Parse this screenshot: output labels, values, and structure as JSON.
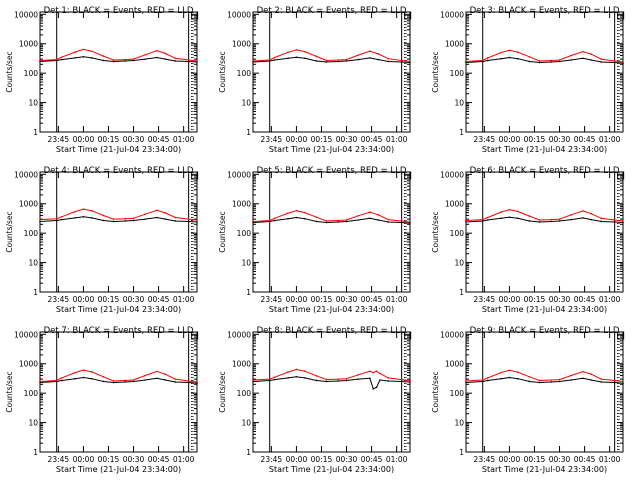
{
  "page": {
    "colors": {
      "background": "#ffffff",
      "axes": "#000000",
      "events": "#000000",
      "lld": "#ff0000"
    }
  },
  "chart_data": [
    {
      "type": "line",
      "title": "Det 1: BLACK = Events, RED = LLD",
      "xlabel": "Start Time (21-Jul-04 23:34:00)",
      "ylabel": "Counts/sec",
      "yscale": "log",
      "ylim": [
        1,
        12000
      ],
      "xlim": [
        "23:34",
        "01:08"
      ],
      "x_ticks": [
        "23:45",
        "00:00",
        "00:15",
        "00:30",
        "00:45",
        "01:00"
      ],
      "y_ticks": [
        "1",
        "10",
        "100",
        "1000",
        "10000"
      ],
      "vlines": [
        "23:44",
        "01:03"
      ],
      "series": [
        {
          "name": "Events",
          "color": "#000000",
          "x": [
            "23:34",
            "23:44",
            "23:47",
            "23:55",
            "00:00",
            "00:05",
            "00:12",
            "00:18",
            "00:25",
            "00:30",
            "00:37",
            "00:44",
            "00:49",
            "00:55",
            "01:03",
            "01:08"
          ],
          "y": [
            250,
            270,
            290,
            330,
            360,
            330,
            270,
            250,
            260,
            270,
            300,
            340,
            300,
            260,
            250,
            240
          ]
        },
        {
          "name": "LLD",
          "color": "#ff0000",
          "x": [
            "23:34",
            "23:44",
            "23:47",
            "23:55",
            "00:00",
            "00:05",
            "00:12",
            "00:18",
            "00:25",
            "00:30",
            "00:37",
            "00:44",
            "00:49",
            "00:55",
            "01:03",
            "01:08"
          ],
          "y": [
            270,
            290,
            350,
            520,
            640,
            560,
            380,
            280,
            290,
            300,
            420,
            580,
            470,
            320,
            280,
            260
          ]
        }
      ]
    },
    {
      "type": "line",
      "title": "Det 2: BLACK = Events, RED = LLD",
      "xlabel": "Start Time (21-Jul-04 23:34:00)",
      "ylabel": "Counts/sec",
      "yscale": "log",
      "ylim": [
        1,
        12000
      ],
      "xlim": [
        "23:34",
        "01:08"
      ],
      "x_ticks": [
        "23:45",
        "00:00",
        "00:15",
        "00:30",
        "00:45",
        "01:00"
      ],
      "y_ticks": [
        "1",
        "10",
        "100",
        "1000",
        "10000"
      ],
      "vlines": [
        "23:44",
        "01:03"
      ],
      "series": [
        {
          "name": "Events",
          "color": "#000000",
          "x": [
            "23:34",
            "23:44",
            "23:47",
            "23:55",
            "00:00",
            "00:05",
            "00:12",
            "00:18",
            "00:25",
            "00:30",
            "00:37",
            "00:44",
            "00:49",
            "00:55",
            "01:03",
            "01:08"
          ],
          "y": [
            240,
            260,
            280,
            320,
            350,
            320,
            260,
            240,
            250,
            260,
            290,
            330,
            290,
            250,
            240,
            230
          ]
        },
        {
          "name": "LLD",
          "color": "#ff0000",
          "x": [
            "23:34",
            "23:44",
            "23:47",
            "23:55",
            "00:00",
            "00:05",
            "00:12",
            "00:18",
            "00:25",
            "00:30",
            "00:37",
            "00:44",
            "00:49",
            "00:55",
            "01:03",
            "01:08"
          ],
          "y": [
            260,
            280,
            340,
            510,
            620,
            540,
            370,
            270,
            280,
            290,
            410,
            560,
            450,
            310,
            270,
            250
          ]
        }
      ]
    },
    {
      "type": "line",
      "title": "Det 3: BLACK = Events, RED = LLD",
      "xlabel": "Start Time (21-Jul-04 23:34:00)",
      "ylabel": "Counts/sec",
      "yscale": "log",
      "ylim": [
        1,
        12000
      ],
      "xlim": [
        "23:34",
        "01:08"
      ],
      "x_ticks": [
        "23:45",
        "00:00",
        "00:15",
        "00:30",
        "00:45",
        "01:00"
      ],
      "y_ticks": [
        "1",
        "10",
        "100",
        "1000",
        "10000"
      ],
      "vlines": [
        "23:44",
        "01:03"
      ],
      "series": [
        {
          "name": "Events",
          "color": "#000000",
          "x": [
            "23:34",
            "23:44",
            "23:47",
            "23:55",
            "00:00",
            "00:05",
            "00:12",
            "00:18",
            "00:25",
            "00:30",
            "00:37",
            "00:44",
            "00:49",
            "00:55",
            "01:03",
            "01:08"
          ],
          "y": [
            230,
            250,
            270,
            310,
            340,
            310,
            250,
            230,
            240,
            250,
            280,
            320,
            280,
            240,
            230,
            220
          ]
        },
        {
          "name": "LLD",
          "color": "#ff0000",
          "x": [
            "23:34",
            "23:44",
            "23:47",
            "23:55",
            "00:00",
            "00:05",
            "00:12",
            "00:18",
            "00:25",
            "00:30",
            "00:37",
            "00:44",
            "00:49",
            "00:55",
            "01:03",
            "01:08"
          ],
          "y": [
            250,
            270,
            330,
            500,
            600,
            520,
            360,
            260,
            270,
            280,
            400,
            540,
            440,
            300,
            260,
            240
          ]
        }
      ]
    },
    {
      "type": "line",
      "title": "Det 4: BLACK = Events, RED = LLD",
      "xlabel": "Start Time (21-Jul-04 23:34:00)",
      "ylabel": "Counts/sec",
      "yscale": "log",
      "ylim": [
        1,
        12000
      ],
      "xlim": [
        "23:34",
        "01:08"
      ],
      "x_ticks": [
        "23:45",
        "00:00",
        "00:15",
        "00:30",
        "00:45",
        "01:00"
      ],
      "y_ticks": [
        "1",
        "10",
        "100",
        "1000",
        "10000"
      ],
      "vlines": [
        "23:44",
        "01:03"
      ],
      "series": [
        {
          "name": "Events",
          "color": "#000000",
          "x": [
            "23:34",
            "23:44",
            "23:47",
            "23:55",
            "00:00",
            "00:05",
            "00:12",
            "00:18",
            "00:25",
            "00:30",
            "00:37",
            "00:44",
            "00:49",
            "00:55",
            "01:03",
            "01:08"
          ],
          "y": [
            250,
            270,
            290,
            330,
            360,
            330,
            270,
            250,
            260,
            270,
            300,
            340,
            300,
            260,
            250,
            240
          ]
        },
        {
          "name": "LLD",
          "color": "#ff0000",
          "x": [
            "23:34",
            "23:44",
            "23:47",
            "23:55",
            "00:00",
            "00:05",
            "00:12",
            "00:18",
            "00:25",
            "00:30",
            "00:37",
            "00:44",
            "00:49",
            "00:55",
            "01:03",
            "01:08"
          ],
          "y": [
            290,
            310,
            360,
            540,
            660,
            580,
            400,
            300,
            310,
            320,
            440,
            600,
            490,
            340,
            300,
            280
          ]
        }
      ]
    },
    {
      "type": "line",
      "title": "Det 5: BLACK = Events, RED = LLD",
      "xlabel": "Start Time (21-Jul-04 23:34:00)",
      "ylabel": "Counts/sec",
      "yscale": "log",
      "ylim": [
        1,
        12000
      ],
      "xlim": [
        "23:34",
        "01:08"
      ],
      "x_ticks": [
        "23:45",
        "00:00",
        "00:15",
        "00:30",
        "00:45",
        "01:00"
      ],
      "y_ticks": [
        "1",
        "10",
        "100",
        "1000",
        "10000"
      ],
      "vlines": [
        "23:44",
        "01:03"
      ],
      "series": [
        {
          "name": "Events",
          "color": "#000000",
          "x": [
            "23:34",
            "23:44",
            "23:47",
            "23:55",
            "00:00",
            "00:05",
            "00:12",
            "00:18",
            "00:25",
            "00:30",
            "00:37",
            "00:44",
            "00:49",
            "00:55",
            "01:03",
            "01:08"
          ],
          "y": [
            230,
            250,
            270,
            310,
            340,
            310,
            250,
            230,
            240,
            250,
            280,
            320,
            280,
            240,
            230,
            220
          ]
        },
        {
          "name": "LLD",
          "color": "#ff0000",
          "x": [
            "23:34",
            "23:44",
            "23:47",
            "23:55",
            "00:00",
            "00:05",
            "00:12",
            "00:18",
            "00:25",
            "00:30",
            "00:37",
            "00:44",
            "00:49",
            "00:55",
            "01:03",
            "01:08"
          ],
          "y": [
            250,
            270,
            320,
            480,
            580,
            500,
            350,
            260,
            270,
            280,
            390,
            520,
            420,
            290,
            260,
            240
          ]
        }
      ]
    },
    {
      "type": "line",
      "title": "Det 6: BLACK = Events, RED = LLD",
      "xlabel": "Start Time (21-Jul-04 23:34:00)",
      "ylabel": "Counts/sec",
      "yscale": "log",
      "ylim": [
        1,
        12000
      ],
      "xlim": [
        "23:34",
        "01:08"
      ],
      "x_ticks": [
        "23:45",
        "00:00",
        "00:15",
        "00:30",
        "00:45",
        "01:00"
      ],
      "y_ticks": [
        "1",
        "10",
        "100",
        "1000",
        "10000"
      ],
      "vlines": [
        "23:44",
        "01:03"
      ],
      "series": [
        {
          "name": "Events",
          "color": "#000000",
          "x": [
            "23:34",
            "23:44",
            "23:47",
            "23:55",
            "00:00",
            "00:05",
            "00:12",
            "00:18",
            "00:25",
            "00:30",
            "00:37",
            "00:44",
            "00:49",
            "00:55",
            "01:03",
            "01:08"
          ],
          "y": [
            240,
            260,
            280,
            320,
            350,
            320,
            260,
            240,
            250,
            260,
            290,
            330,
            290,
            250,
            240,
            230
          ]
        },
        {
          "name": "LLD",
          "color": "#ff0000",
          "x": [
            "23:34",
            "23:44",
            "23:47",
            "23:55",
            "00:00",
            "00:05",
            "00:12",
            "00:18",
            "00:25",
            "00:30",
            "00:37",
            "00:44",
            "00:49",
            "00:55",
            "01:03",
            "01:08"
          ],
          "y": [
            270,
            290,
            340,
            520,
            630,
            550,
            380,
            280,
            290,
            300,
            420,
            570,
            460,
            320,
            280,
            260
          ]
        }
      ]
    },
    {
      "type": "line",
      "title": "Det 7: BLACK = Events, RED = LLD",
      "xlabel": "Start Time (21-Jul-04 23:34:00)",
      "ylabel": "Counts/sec",
      "yscale": "log",
      "ylim": [
        1,
        12000
      ],
      "xlim": [
        "23:34",
        "01:08"
      ],
      "x_ticks": [
        "23:45",
        "00:00",
        "00:15",
        "00:30",
        "00:45",
        "01:00"
      ],
      "y_ticks": [
        "1",
        "10",
        "100",
        "1000",
        "10000"
      ],
      "vlines": [
        "23:44",
        "01:03"
      ],
      "series": [
        {
          "name": "Events",
          "color": "#000000",
          "x": [
            "23:34",
            "23:44",
            "23:47",
            "23:55",
            "00:00",
            "00:05",
            "00:12",
            "00:18",
            "00:25",
            "00:30",
            "00:37",
            "00:44",
            "00:49",
            "00:55",
            "01:03",
            "01:08"
          ],
          "y": [
            230,
            250,
            270,
            310,
            340,
            310,
            250,
            230,
            240,
            250,
            280,
            320,
            280,
            240,
            230,
            220
          ]
        },
        {
          "name": "LLD",
          "color": "#ff0000",
          "x": [
            "23:34",
            "23:44",
            "23:47",
            "23:55",
            "00:00",
            "00:05",
            "00:12",
            "00:18",
            "00:25",
            "00:30",
            "00:37",
            "00:44",
            "00:49",
            "00:55",
            "01:03",
            "01:08"
          ],
          "y": [
            250,
            270,
            330,
            500,
            610,
            530,
            360,
            260,
            270,
            280,
            400,
            550,
            440,
            300,
            260,
            240
          ]
        }
      ]
    },
    {
      "type": "line",
      "title": "Det 8: BLACK = Events, RED = LLD",
      "xlabel": "Start Time (21-Jul-04 23:34:00)",
      "ylabel": "Counts/sec",
      "yscale": "log",
      "ylim": [
        1,
        12000
      ],
      "xlim": [
        "23:34",
        "01:08"
      ],
      "x_ticks": [
        "23:45",
        "00:00",
        "00:15",
        "00:30",
        "00:45",
        "01:00"
      ],
      "y_ticks": [
        "1",
        "10",
        "100",
        "1000",
        "10000"
      ],
      "vlines": [
        "23:44",
        "01:03"
      ],
      "series": [
        {
          "name": "Events",
          "color": "#000000",
          "x": [
            "23:34",
            "23:44",
            "23:47",
            "23:55",
            "00:00",
            "00:05",
            "00:12",
            "00:18",
            "00:25",
            "00:30",
            "00:37",
            "00:44",
            "00:46",
            "00:48",
            "00:50",
            "00:55",
            "01:03",
            "01:08"
          ],
          "y": [
            250,
            270,
            290,
            330,
            360,
            330,
            270,
            250,
            260,
            270,
            300,
            320,
            140,
            160,
            280,
            260,
            250,
            240
          ]
        },
        {
          "name": "LLD",
          "color": "#ff0000",
          "x": [
            "23:34",
            "23:44",
            "23:47",
            "23:55",
            "00:00",
            "00:05",
            "00:12",
            "00:18",
            "00:25",
            "00:30",
            "00:37",
            "00:44",
            "00:46",
            "00:48",
            "00:50",
            "00:55",
            "01:03",
            "01:08"
          ],
          "y": [
            280,
            300,
            350,
            520,
            640,
            560,
            390,
            290,
            300,
            310,
            420,
            560,
            500,
            560,
            470,
            330,
            290,
            270
          ]
        }
      ]
    },
    {
      "type": "line",
      "title": "Det 9: BLACK = Events, RED = LLD",
      "xlabel": "Start Time (21-Jul-04 23:34:00)",
      "ylabel": "Counts/sec",
      "yscale": "log",
      "ylim": [
        1,
        12000
      ],
      "xlim": [
        "23:34",
        "01:08"
      ],
      "x_ticks": [
        "23:45",
        "00:00",
        "00:15",
        "00:30",
        "00:45",
        "01:00"
      ],
      "y_ticks": [
        "1",
        "10",
        "100",
        "1000",
        "10000"
      ],
      "vlines": [
        "23:44",
        "01:03"
      ],
      "series": [
        {
          "name": "Events",
          "color": "#000000",
          "x": [
            "23:34",
            "23:44",
            "23:47",
            "23:55",
            "00:00",
            "00:05",
            "00:12",
            "00:18",
            "00:25",
            "00:30",
            "00:37",
            "00:44",
            "00:49",
            "00:55",
            "01:03",
            "01:08"
          ],
          "y": [
            230,
            250,
            270,
            310,
            340,
            310,
            250,
            230,
            240,
            250,
            280,
            320,
            280,
            240,
            230,
            220
          ]
        },
        {
          "name": "LLD",
          "color": "#ff0000",
          "x": [
            "23:34",
            "23:44",
            "23:47",
            "23:55",
            "00:00",
            "00:05",
            "00:12",
            "00:18",
            "00:25",
            "00:30",
            "00:37",
            "00:44",
            "00:49",
            "00:55",
            "01:03",
            "01:08"
          ],
          "y": [
            260,
            280,
            330,
            500,
            600,
            520,
            360,
            270,
            280,
            290,
            400,
            540,
            440,
            300,
            270,
            250
          ]
        }
      ]
    }
  ]
}
